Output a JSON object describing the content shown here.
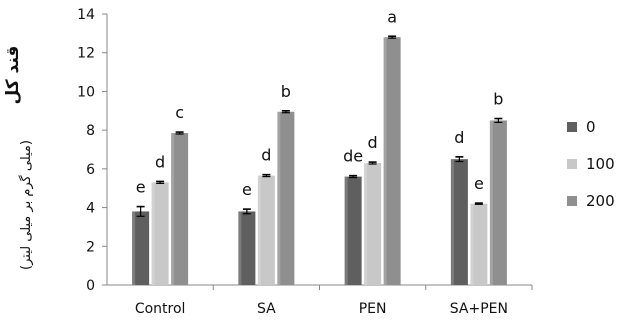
{
  "chart_data": {
    "type": "bar",
    "title": "",
    "xlabel": "",
    "ylabel_main": "قند کل",
    "ylabel_sub": "(میلی گرم بر میلی لیتر)",
    "ylim": [
      0,
      14
    ],
    "yticks": [
      0,
      2,
      4,
      6,
      8,
      10,
      12,
      14
    ],
    "grid": false,
    "legend_position": "right",
    "categories": [
      "Control",
      "SA",
      "PEN",
      "SA+PEN"
    ],
    "series": [
      {
        "name": "0",
        "color": "#5f5f5f",
        "values": [
          3.8,
          3.8,
          5.6,
          6.5
        ],
        "errors": [
          0.25,
          0.12,
          0.05,
          0.12
        ],
        "letters": [
          "e",
          "e",
          "de",
          "d"
        ]
      },
      {
        "name": "100",
        "color": "#c8c8c8",
        "values": [
          5.3,
          5.65,
          6.3,
          4.2
        ],
        "errors": [
          0.05,
          0.05,
          0.05,
          0.03
        ],
        "letters": [
          "d",
          "d",
          "d",
          "e"
        ]
      },
      {
        "name": "200",
        "color": "#8f8f8f",
        "values": [
          7.85,
          8.95,
          12.8,
          8.5
        ],
        "errors": [
          0.05,
          0.05,
          0.05,
          0.1
        ],
        "letters": [
          "c",
          "b",
          "a",
          "b"
        ]
      }
    ]
  }
}
